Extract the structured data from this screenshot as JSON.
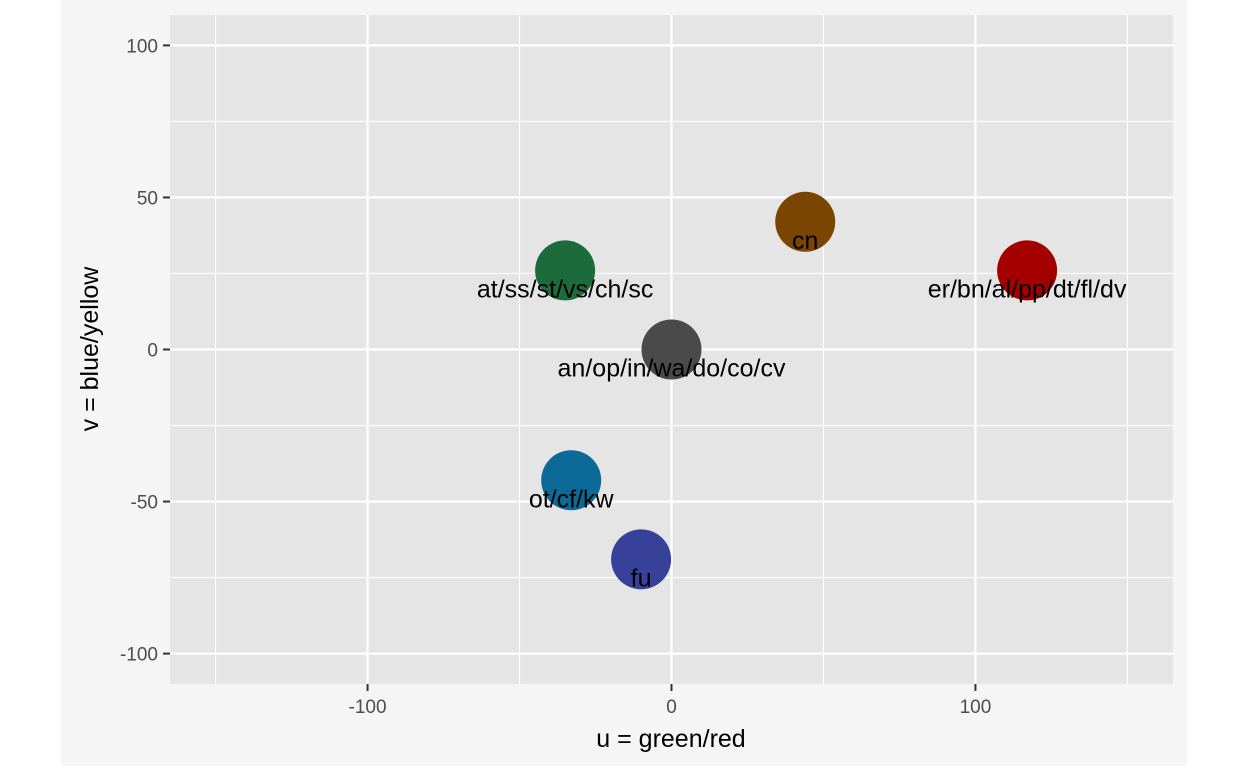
{
  "chart_data": {
    "type": "scatter",
    "title": "",
    "xlabel": "u = green/red",
    "ylabel": "v = blue/yellow",
    "xlim": [
      -165,
      165
    ],
    "ylim": [
      -110,
      110
    ],
    "x_ticks": [
      -100,
      0,
      100
    ],
    "y_ticks": [
      -100,
      -50,
      0,
      50,
      100
    ],
    "x_minor": [
      -150,
      -50,
      50,
      150
    ],
    "y_minor": [
      -75,
      -25,
      25,
      75
    ],
    "grid": true,
    "panel_color": "#e5e5e5",
    "grid_color": "#ffffff",
    "points": [
      {
        "label": "cn",
        "x": 44,
        "y": 42,
        "color": "#7a4500"
      },
      {
        "label": "at/ss/st/vs/ch/sc",
        "x": -35,
        "y": 26,
        "color": "#1c6b3a"
      },
      {
        "label": "er/bn/al/pp/dt/fl/dv",
        "x": 117,
        "y": 26,
        "color": "#a50000"
      },
      {
        "label": "an/op/in/wa/do/co/cv",
        "x": 0,
        "y": 0,
        "color": "#4a4a4a"
      },
      {
        "label": "ot/cf/kw",
        "x": -33,
        "y": -43,
        "color": "#0b6a97"
      },
      {
        "label": "fu",
        "x": -10,
        "y": -69,
        "color": "#37419a"
      }
    ]
  }
}
